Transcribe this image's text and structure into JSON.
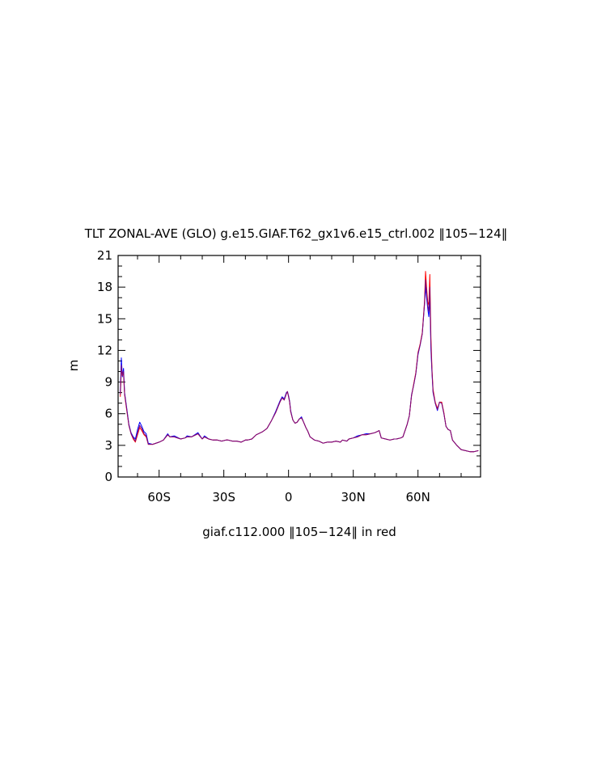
{
  "chart_data": {
    "type": "line",
    "title": "TLT ZONAL-AVE (GLO) g.e15.GIAF.T62_gx1v6.e15_ctrl.002 ‖105−124‖",
    "xlabel": "giaf.c112.000 ‖105−124‖ in red",
    "ylabel": "m",
    "xlim": [
      -79,
      89
    ],
    "ylim": [
      0,
      21
    ],
    "x_ticks": [
      {
        "value": -60,
        "label": "60S"
      },
      {
        "value": -30,
        "label": "30S"
      },
      {
        "value": 0,
        "label": "0"
      },
      {
        "value": 30,
        "label": "30N"
      },
      {
        "value": 60,
        "label": "60N"
      }
    ],
    "y_ticks": [
      {
        "value": 0,
        "label": "0"
      },
      {
        "value": 3,
        "label": "3"
      },
      {
        "value": 6,
        "label": "6"
      },
      {
        "value": 9,
        "label": "9"
      },
      {
        "value": 12,
        "label": "12"
      },
      {
        "value": 15,
        "label": "15"
      },
      {
        "value": 18,
        "label": "18"
      },
      {
        "value": 21,
        "label": "21"
      }
    ],
    "grid": false,
    "series": [
      {
        "color": "#0000ff",
        "x": [
          -78,
          -77.5,
          -77,
          -76.5,
          -76,
          -75,
          -74,
          -73,
          -72,
          -71,
          -70,
          -69,
          -68,
          -67,
          -66,
          -65,
          -63,
          -60,
          -58,
          -56,
          -55,
          -53,
          -50,
          -48,
          -47,
          -45,
          -42,
          -40,
          -39,
          -37,
          -35,
          -33,
          -31,
          -29,
          -28,
          -26,
          -24,
          -22,
          -20,
          -19,
          -17,
          -15,
          -12,
          -10,
          -8,
          -6,
          -4,
          -3,
          -2,
          -1,
          -0.5,
          0,
          0.5,
          1,
          2,
          3,
          4,
          5,
          6,
          7,
          8,
          9,
          10,
          12,
          14,
          16,
          18,
          20,
          22,
          24,
          25,
          27,
          28,
          30,
          32,
          34,
          36,
          38,
          40,
          41,
          42,
          43,
          45,
          47,
          49,
          50,
          52,
          53,
          54,
          55,
          56,
          57,
          58,
          59,
          60,
          61,
          62,
          63,
          63.5,
          64,
          64.5,
          65,
          65.5,
          66,
          66.5,
          67,
          68,
          69,
          70,
          71,
          72,
          73,
          74,
          75,
          76,
          78,
          80,
          82,
          84,
          86,
          88
        ],
        "y": [
          8,
          11.3,
          9.5,
          10.3,
          8,
          6.5,
          5,
          4.2,
          3.8,
          3.6,
          4.5,
          5.2,
          4.8,
          4.3,
          4.1,
          3.2,
          3.1,
          3.3,
          3.5,
          4.1,
          3.8,
          3.9,
          3.6,
          3.7,
          3.9,
          3.8,
          4.2,
          3.6,
          3.9,
          3.6,
          3.5,
          3.5,
          3.4,
          3.5,
          3.5,
          3.4,
          3.4,
          3.3,
          3.5,
          3.5,
          3.6,
          4,
          4.3,
          4.6,
          5.3,
          6.2,
          7.2,
          7.6,
          7.4,
          8,
          8.1,
          7.7,
          7.2,
          6.3,
          5.4,
          5.1,
          5.2,
          5.5,
          5.7,
          5.2,
          4.7,
          4.3,
          3.8,
          3.5,
          3.4,
          3.2,
          3.3,
          3.3,
          3.4,
          3.3,
          3.5,
          3.4,
          3.6,
          3.7,
          3.9,
          4,
          4.1,
          4.1,
          4.2,
          4.3,
          4.4,
          3.7,
          3.6,
          3.5,
          3.6,
          3.6,
          3.7,
          3.8,
          4.4,
          5,
          5.8,
          7.8,
          8.7,
          9.8,
          11.6,
          12.5,
          13.6,
          16.3,
          18,
          17,
          16,
          15.2,
          17,
          12,
          9.8,
          8,
          7,
          6.3,
          7.1,
          7,
          6,
          4.8,
          4.5,
          4.4,
          3.5,
          3,
          2.6,
          2.5,
          2.4,
          2.4,
          2.5
        ]
      },
      {
        "color": "#ff0000",
        "x": [
          -78,
          -77.5,
          -77,
          -76.5,
          -76,
          -75,
          -74,
          -73,
          -72,
          -71,
          -70,
          -69,
          -68,
          -67,
          -66,
          -65,
          -63,
          -60,
          -58,
          -56,
          -55,
          -53,
          -50,
          -48,
          -47,
          -45,
          -42,
          -40,
          -39,
          -37,
          -35,
          -33,
          -31,
          -29,
          -28,
          -26,
          -24,
          -22,
          -20,
          -19,
          -17,
          -15,
          -12,
          -10,
          -8,
          -6,
          -4,
          -3,
          -2,
          -1,
          -0.5,
          0,
          0.5,
          1,
          2,
          3,
          4,
          5,
          6,
          7,
          8,
          9,
          10,
          12,
          14,
          16,
          18,
          20,
          22,
          24,
          25,
          27,
          28,
          30,
          32,
          34,
          36,
          38,
          40,
          41,
          42,
          43,
          45,
          47,
          49,
          50,
          52,
          53,
          54,
          55,
          56,
          57,
          58,
          59,
          60,
          61,
          62,
          63,
          63.5,
          64,
          64.5,
          65,
          65.5,
          66,
          66.5,
          67,
          68,
          69,
          70,
          71,
          72,
          73,
          74,
          75,
          76,
          78,
          80,
          82,
          84,
          86,
          88
        ],
        "y": [
          7.6,
          10.1,
          9.8,
          9.7,
          7.8,
          6.3,
          4.9,
          4.1,
          3.6,
          3.3,
          4,
          4.7,
          4.4,
          4,
          3.8,
          3.1,
          3.1,
          3.3,
          3.5,
          4,
          3.8,
          3.8,
          3.6,
          3.7,
          3.8,
          3.8,
          4.1,
          3.6,
          3.8,
          3.6,
          3.5,
          3.5,
          3.4,
          3.5,
          3.5,
          3.4,
          3.4,
          3.3,
          3.5,
          3.5,
          3.6,
          4,
          4.3,
          4.6,
          5.3,
          6.1,
          7.1,
          7.5,
          7.3,
          7.9,
          8.1,
          7.6,
          7.1,
          6.2,
          5.4,
          5.1,
          5.2,
          5.5,
          5.6,
          5.2,
          4.7,
          4.3,
          3.8,
          3.5,
          3.4,
          3.2,
          3.3,
          3.3,
          3.4,
          3.3,
          3.5,
          3.4,
          3.6,
          3.7,
          3.8,
          4,
          4,
          4.1,
          4.2,
          4.3,
          4.4,
          3.7,
          3.6,
          3.5,
          3.6,
          3.6,
          3.7,
          3.8,
          4.4,
          5,
          5.8,
          7.7,
          8.8,
          9.9,
          11.8,
          12.6,
          13.7,
          16.6,
          19.5,
          18,
          16.6,
          16.3,
          19.2,
          13.1,
          10.2,
          8.3,
          7.1,
          6.5,
          7.1,
          7.1,
          6.1,
          4.8,
          4.5,
          4.4,
          3.5,
          3,
          2.6,
          2.5,
          2.4,
          2.4,
          2.5
        ]
      },
      {
        "color": "#7a0a7a",
        "x": [
          -78,
          -77.5,
          -77,
          -76.5,
          -76,
          -75,
          -74,
          -73,
          -72,
          -71,
          -70,
          -69,
          -68,
          -67,
          -66,
          -65,
          -63,
          -60,
          -58,
          -56,
          -55,
          -53,
          -50,
          -48,
          -47,
          -45,
          -42,
          -40,
          -39,
          -37,
          -35,
          -33,
          -31,
          -29,
          -28,
          -26,
          -24,
          -22,
          -20,
          -19,
          -17,
          -15,
          -12,
          -10,
          -8,
          -6,
          -4,
          -3,
          -2,
          -1,
          -0.5,
          0,
          0.5,
          1,
          2,
          3,
          4,
          5,
          6,
          7,
          8,
          9,
          10,
          12,
          14,
          16,
          18,
          20,
          22,
          24,
          25,
          27,
          28,
          30,
          32,
          34,
          36,
          38,
          40,
          41,
          42,
          43,
          45,
          47,
          49,
          50,
          52,
          53,
          54,
          55,
          56,
          57,
          58,
          59,
          60,
          61,
          62,
          63,
          63.5,
          64,
          64.5,
          65,
          65.5,
          66,
          66.5,
          67,
          68,
          69,
          70,
          71,
          72,
          73,
          74,
          75,
          76,
          78,
          80,
          82,
          84,
          86,
          88
        ],
        "y": [
          7.8,
          10.6,
          9.6,
          10,
          7.9,
          6.4,
          4.9,
          4.1,
          3.7,
          3.4,
          4.2,
          4.9,
          4.6,
          4.1,
          3.9,
          3.1,
          3.1,
          3.3,
          3.5,
          4,
          3.8,
          3.8,
          3.6,
          3.7,
          3.8,
          3.8,
          4.1,
          3.6,
          3.8,
          3.6,
          3.5,
          3.5,
          3.4,
          3.5,
          3.5,
          3.4,
          3.4,
          3.3,
          3.5,
          3.5,
          3.6,
          4,
          4.3,
          4.6,
          5.3,
          6.1,
          7.1,
          7.5,
          7.3,
          7.9,
          8.1,
          7.6,
          7.1,
          6.2,
          5.4,
          5.1,
          5.2,
          5.5,
          5.6,
          5.2,
          4.7,
          4.3,
          3.8,
          3.5,
          3.4,
          3.2,
          3.3,
          3.3,
          3.4,
          3.3,
          3.5,
          3.4,
          3.6,
          3.7,
          3.8,
          4,
          4,
          4.1,
          4.2,
          4.3,
          4.4,
          3.7,
          3.6,
          3.5,
          3.6,
          3.6,
          3.7,
          3.8,
          4.4,
          5,
          5.8,
          7.7,
          8.7,
          9.8,
          11.7,
          12.5,
          13.6,
          16.4,
          18.7,
          17.5,
          16.3,
          15.7,
          18,
          12.5,
          10,
          8.1,
          7,
          6.4,
          7.1,
          7,
          6,
          4.8,
          4.5,
          4.4,
          3.5,
          3,
          2.6,
          2.5,
          2.4,
          2.4,
          2.5
        ]
      }
    ]
  }
}
